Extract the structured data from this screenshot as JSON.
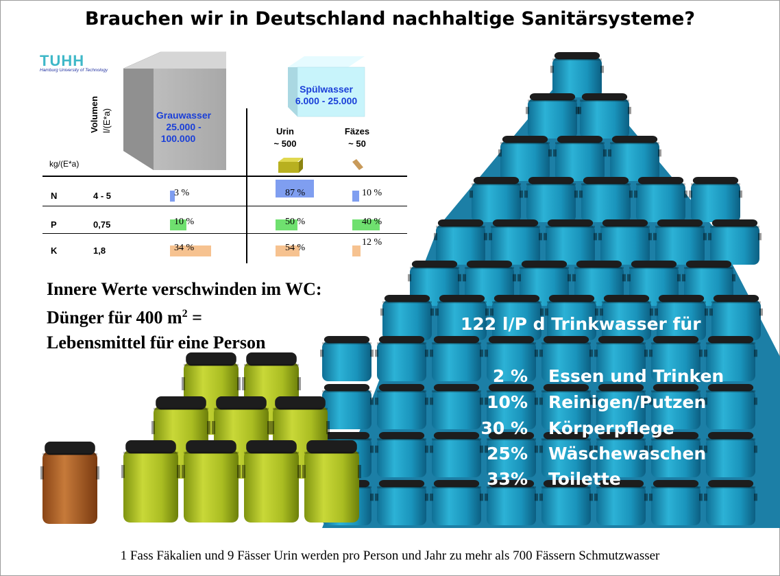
{
  "title": "Brauchen wir in Deutschland nachhaltige Sanitärsysteme?",
  "logo": {
    "name": "TUHH",
    "sub": "Hamburg University of Technology"
  },
  "volume_axis": {
    "line1": "Volumen",
    "line2": "l/(E*a)"
  },
  "grauwasser": {
    "name": "Grauwasser",
    "range": "25.000 -",
    "range2": "100.000"
  },
  "spuelwasser": {
    "name": "Spülwasser",
    "range": "6.000 - 25.000"
  },
  "urin": {
    "name": "Urin",
    "amount": "~ 500"
  },
  "faezes": {
    "name": "Fäzes",
    "amount": "~ 50"
  },
  "mass_unit": "kg/(E*a)",
  "nutrients": [
    {
      "name": "N",
      "value": "4 - 5",
      "grau": "3  %",
      "urin": "87  %",
      "faezes": "10 %"
    },
    {
      "name": "P",
      "value": "0,75",
      "grau": "10 %",
      "urin": "50  %",
      "faezes": "40 %"
    },
    {
      "name": "K",
      "value": "1,8",
      "grau": "34 %",
      "urin": "54 %",
      "faezes": "12 %"
    }
  ],
  "bar_fractions": {
    "grau": [
      0.03,
      0.1,
      0.34
    ],
    "urin": [
      0.87,
      0.5,
      0.54
    ],
    "faezes": [
      0.1,
      0.4,
      0.12
    ]
  },
  "bar_colors": {
    "N": "#7f9ef0",
    "P": "#6fe06f",
    "K": "#f6c290"
  },
  "inner_values": {
    "line1": "Innere Werte verschwinden im WC:",
    "line2": "Dünger für 400 m",
    "line2_sup": "2",
    "line2_end": " =",
    "line3": "Lebensmittel für eine Person"
  },
  "drinking_water": {
    "heading": "122 l/P d Trinkwasser für",
    "uses": [
      {
        "pct": "2 %",
        "label": "Essen und Trinken"
      },
      {
        "pct": "10%",
        "label": "Reinigen/Putzen"
      },
      {
        "pct": "30 %",
        "label": "Körperpflege"
      },
      {
        "pct": "25%",
        "label": "Wäschewaschen"
      },
      {
        "pct": "33%",
        "label": "Toilette"
      }
    ]
  },
  "colors": {
    "blue_barrel": "#1a9cc0",
    "green_barrel": "#b2c420",
    "brown_barrel": "#b4652a",
    "pyramid_bg": "#1c7fa6"
  },
  "footer": "1 Fass Fäkalien und 9 Fässer Urin werden pro Person und Jahr zu mehr als 700 Fässern Schmutzwasser"
}
